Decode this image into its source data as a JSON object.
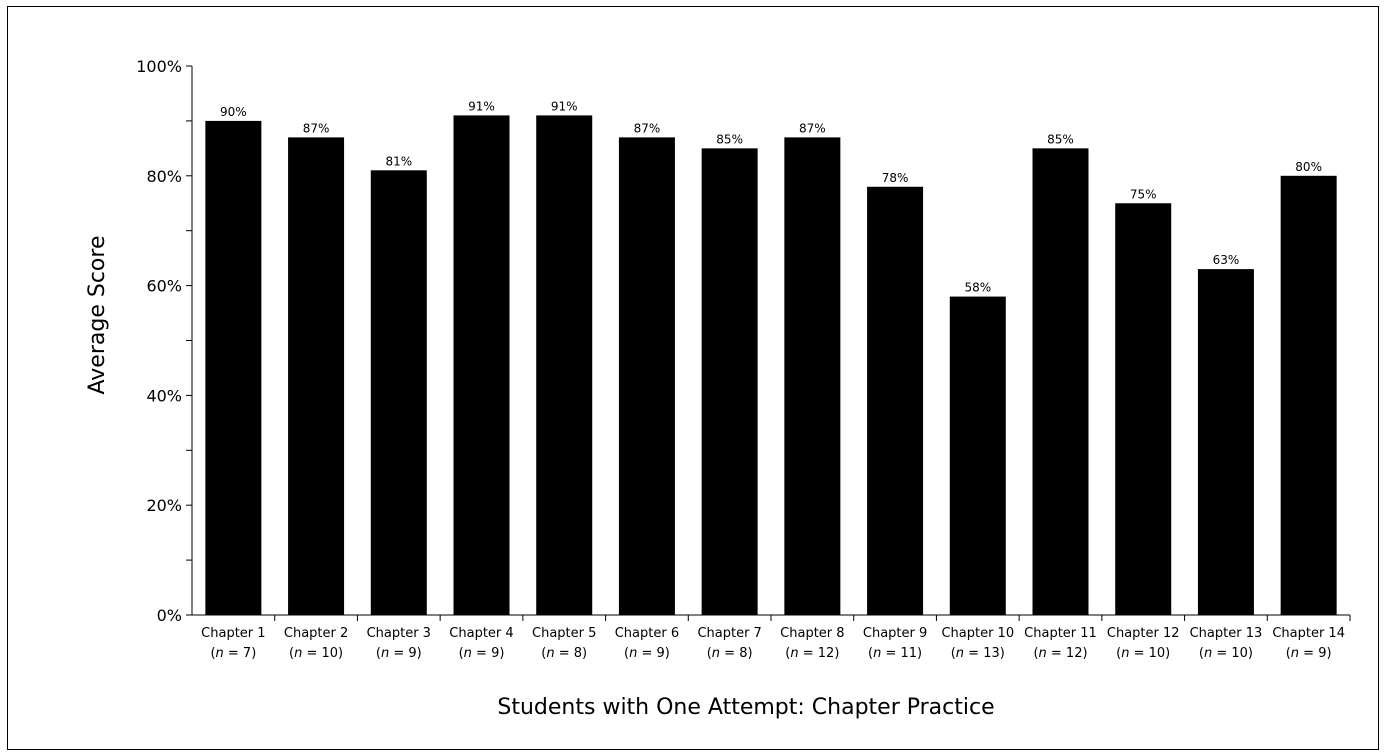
{
  "chart_data": {
    "type": "bar",
    "categories": [
      "Chapter 1",
      "Chapter 2",
      "Chapter 3",
      "Chapter 4",
      "Chapter 5",
      "Chapter 6",
      "Chapter 7",
      "Chapter 8",
      "Chapter 9",
      "Chapter 10",
      "Chapter 11",
      "Chapter 12",
      "Chapter 13",
      "Chapter 14"
    ],
    "n_values": [
      7,
      10,
      9,
      9,
      8,
      9,
      8,
      12,
      11,
      13,
      12,
      10,
      10,
      9
    ],
    "values": [
      90,
      87,
      81,
      91,
      91,
      87,
      85,
      87,
      78,
      58,
      85,
      75,
      63,
      80
    ],
    "value_labels": [
      "90%",
      "87%",
      "81%",
      "91%",
      "91%",
      "87%",
      "85%",
      "87%",
      "78%",
      "58%",
      "85%",
      "75%",
      "63%",
      "80%"
    ],
    "xlabel": "Students with One Attempt: Chapter Practice",
    "ylabel": "Average Score",
    "ylim": [
      0,
      100
    ],
    "yticks": [
      0,
      20,
      40,
      60,
      80,
      100
    ],
    "ytick_labels": [
      "0%",
      "20%",
      "40%",
      "60%",
      "80%",
      "100%"
    ],
    "grid": false,
    "legend": "none",
    "bar_color": "#000000"
  }
}
